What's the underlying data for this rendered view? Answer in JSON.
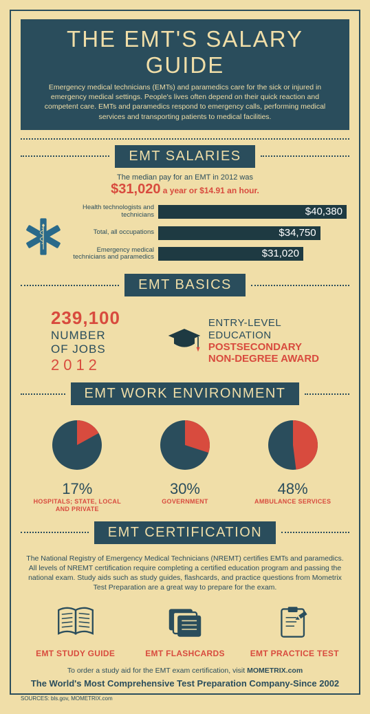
{
  "colors": {
    "bg": "#f0dea8",
    "dark": "#2a4d5c",
    "red": "#d84b3e",
    "barfill": "#1e3a42"
  },
  "title": "THE EMT'S SALARY GUIDE",
  "intro": "Emergency medical technicians (EMTs) and paramedics care for the sick or injured in emergency medical settings. People's lives often depend on their quick reaction and competent care. EMTs and paramedics respond to emergency calls, performing medical services and transporting patients to medical facilities.",
  "sections": {
    "salaries": {
      "header": "EMT SALARIES",
      "intro_line1": "The median pay for an EMT in 2012 was",
      "highlight_big": "$31,020",
      "highlight_rest": " a year or $14.91 an hour.",
      "bars": [
        {
          "label": "Health technologists and technicians",
          "value": "$40,380",
          "width_pct": 100
        },
        {
          "label": "Total, all occupations",
          "value": "$34,750",
          "width_pct": 86
        },
        {
          "label": "Emergency medical technicians and paramedics",
          "value": "$31,020",
          "width_pct": 77
        }
      ]
    },
    "basics": {
      "header": "EMT BASICS",
      "jobs_number": "239,100",
      "jobs_l1": "NUMBER",
      "jobs_l2": "OF JOBS",
      "jobs_year": "2012",
      "edu_l1": "ENTRY-LEVEL",
      "edu_l2": "EDUCATION",
      "edu_l3": "POSTSECONDARY",
      "edu_l4": "NON-DEGREE AWARD"
    },
    "workenv": {
      "header": "EMT WORK ENVIRONMENT",
      "pies": [
        {
          "pct": 17,
          "pct_label": "17%",
          "label": "HOSPITALS; STATE, LOCAL AND PRIVATE"
        },
        {
          "pct": 30,
          "pct_label": "30%",
          "label": "GOVERNMENT"
        },
        {
          "pct": 48,
          "pct_label": "48%",
          "label": "AMBULANCE SERVICES"
        }
      ]
    },
    "cert": {
      "header": "EMT CERTIFICATION",
      "text": "The National Registry of Emergency Medical Technicians (NREMT) certifies EMTs and paramedics. All levels of NREMT certification require completing a certified education program and passing the national exam. Study aids such as study guides, flashcards, and practice questions from Mometrix Test Preparation are a great way to prepare for the exam.",
      "items": [
        {
          "label": "EMT STUDY GUIDE"
        },
        {
          "label": "EMT FLASHCARDS"
        },
        {
          "label": "EMT PRACTICE TEST"
        }
      ]
    }
  },
  "footer": {
    "order_pre": "To order a study aid for the EMT exam certification, visit ",
    "order_bold": "MOMETRIX.com",
    "tagline": "The World's Most Comprehensive Test Preparation Company-Since 2002",
    "sources": "SOURCES: bls.gov, MOMETRIX.com"
  }
}
